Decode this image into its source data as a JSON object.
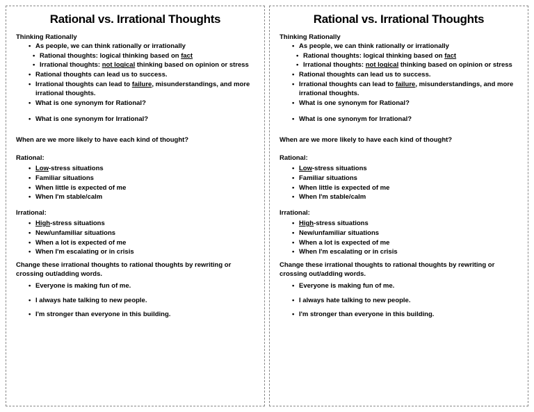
{
  "title": "Rational vs. Irrational Thoughts",
  "sec1": {
    "heading": "Thinking Rationally",
    "p1": "As people, we can think rationally or irrationally",
    "p1a_pre": "Rational thoughts: logical thinking based on ",
    "p1a_u": "fact",
    "p1b_pre": "Irrational thoughts: ",
    "p1b_u": "not logical",
    "p1b_post": " thinking based on opinion or stress",
    "p2": "Rational thoughts can lead us to success.",
    "p3_pre": "Irrational thoughts can lead to ",
    "p3_u": "failure",
    "p3_post": ", misunderstandings, and more irrational thoughts.",
    "p4": "What is one synonym for Rational?",
    "p5": "What is one synonym for Irrational?"
  },
  "q2": "When are we more likely to have each kind of thought?",
  "rat": {
    "heading": "Rational:",
    "i1_u": "Low",
    "i1_post": "-stress situations",
    "i2": "Familiar situations",
    "i3": "When little is expected of me",
    "i4": "When I'm stable/calm"
  },
  "irr": {
    "heading": "Irrational:",
    "i1_u": "High",
    "i1_post": "-stress situations",
    "i2": "New/unfamiliar situations",
    "i3": "When a lot is expected of me",
    "i4": "When I'm escalating or in crisis"
  },
  "instruct": "Change these irrational thoughts to rational thoughts by rewriting or crossing out/adding words.",
  "ex": {
    "e1": "Everyone is making fun of me.",
    "e2": "I always hate talking to new people.",
    "e3": "I'm stronger than everyone in this building."
  }
}
